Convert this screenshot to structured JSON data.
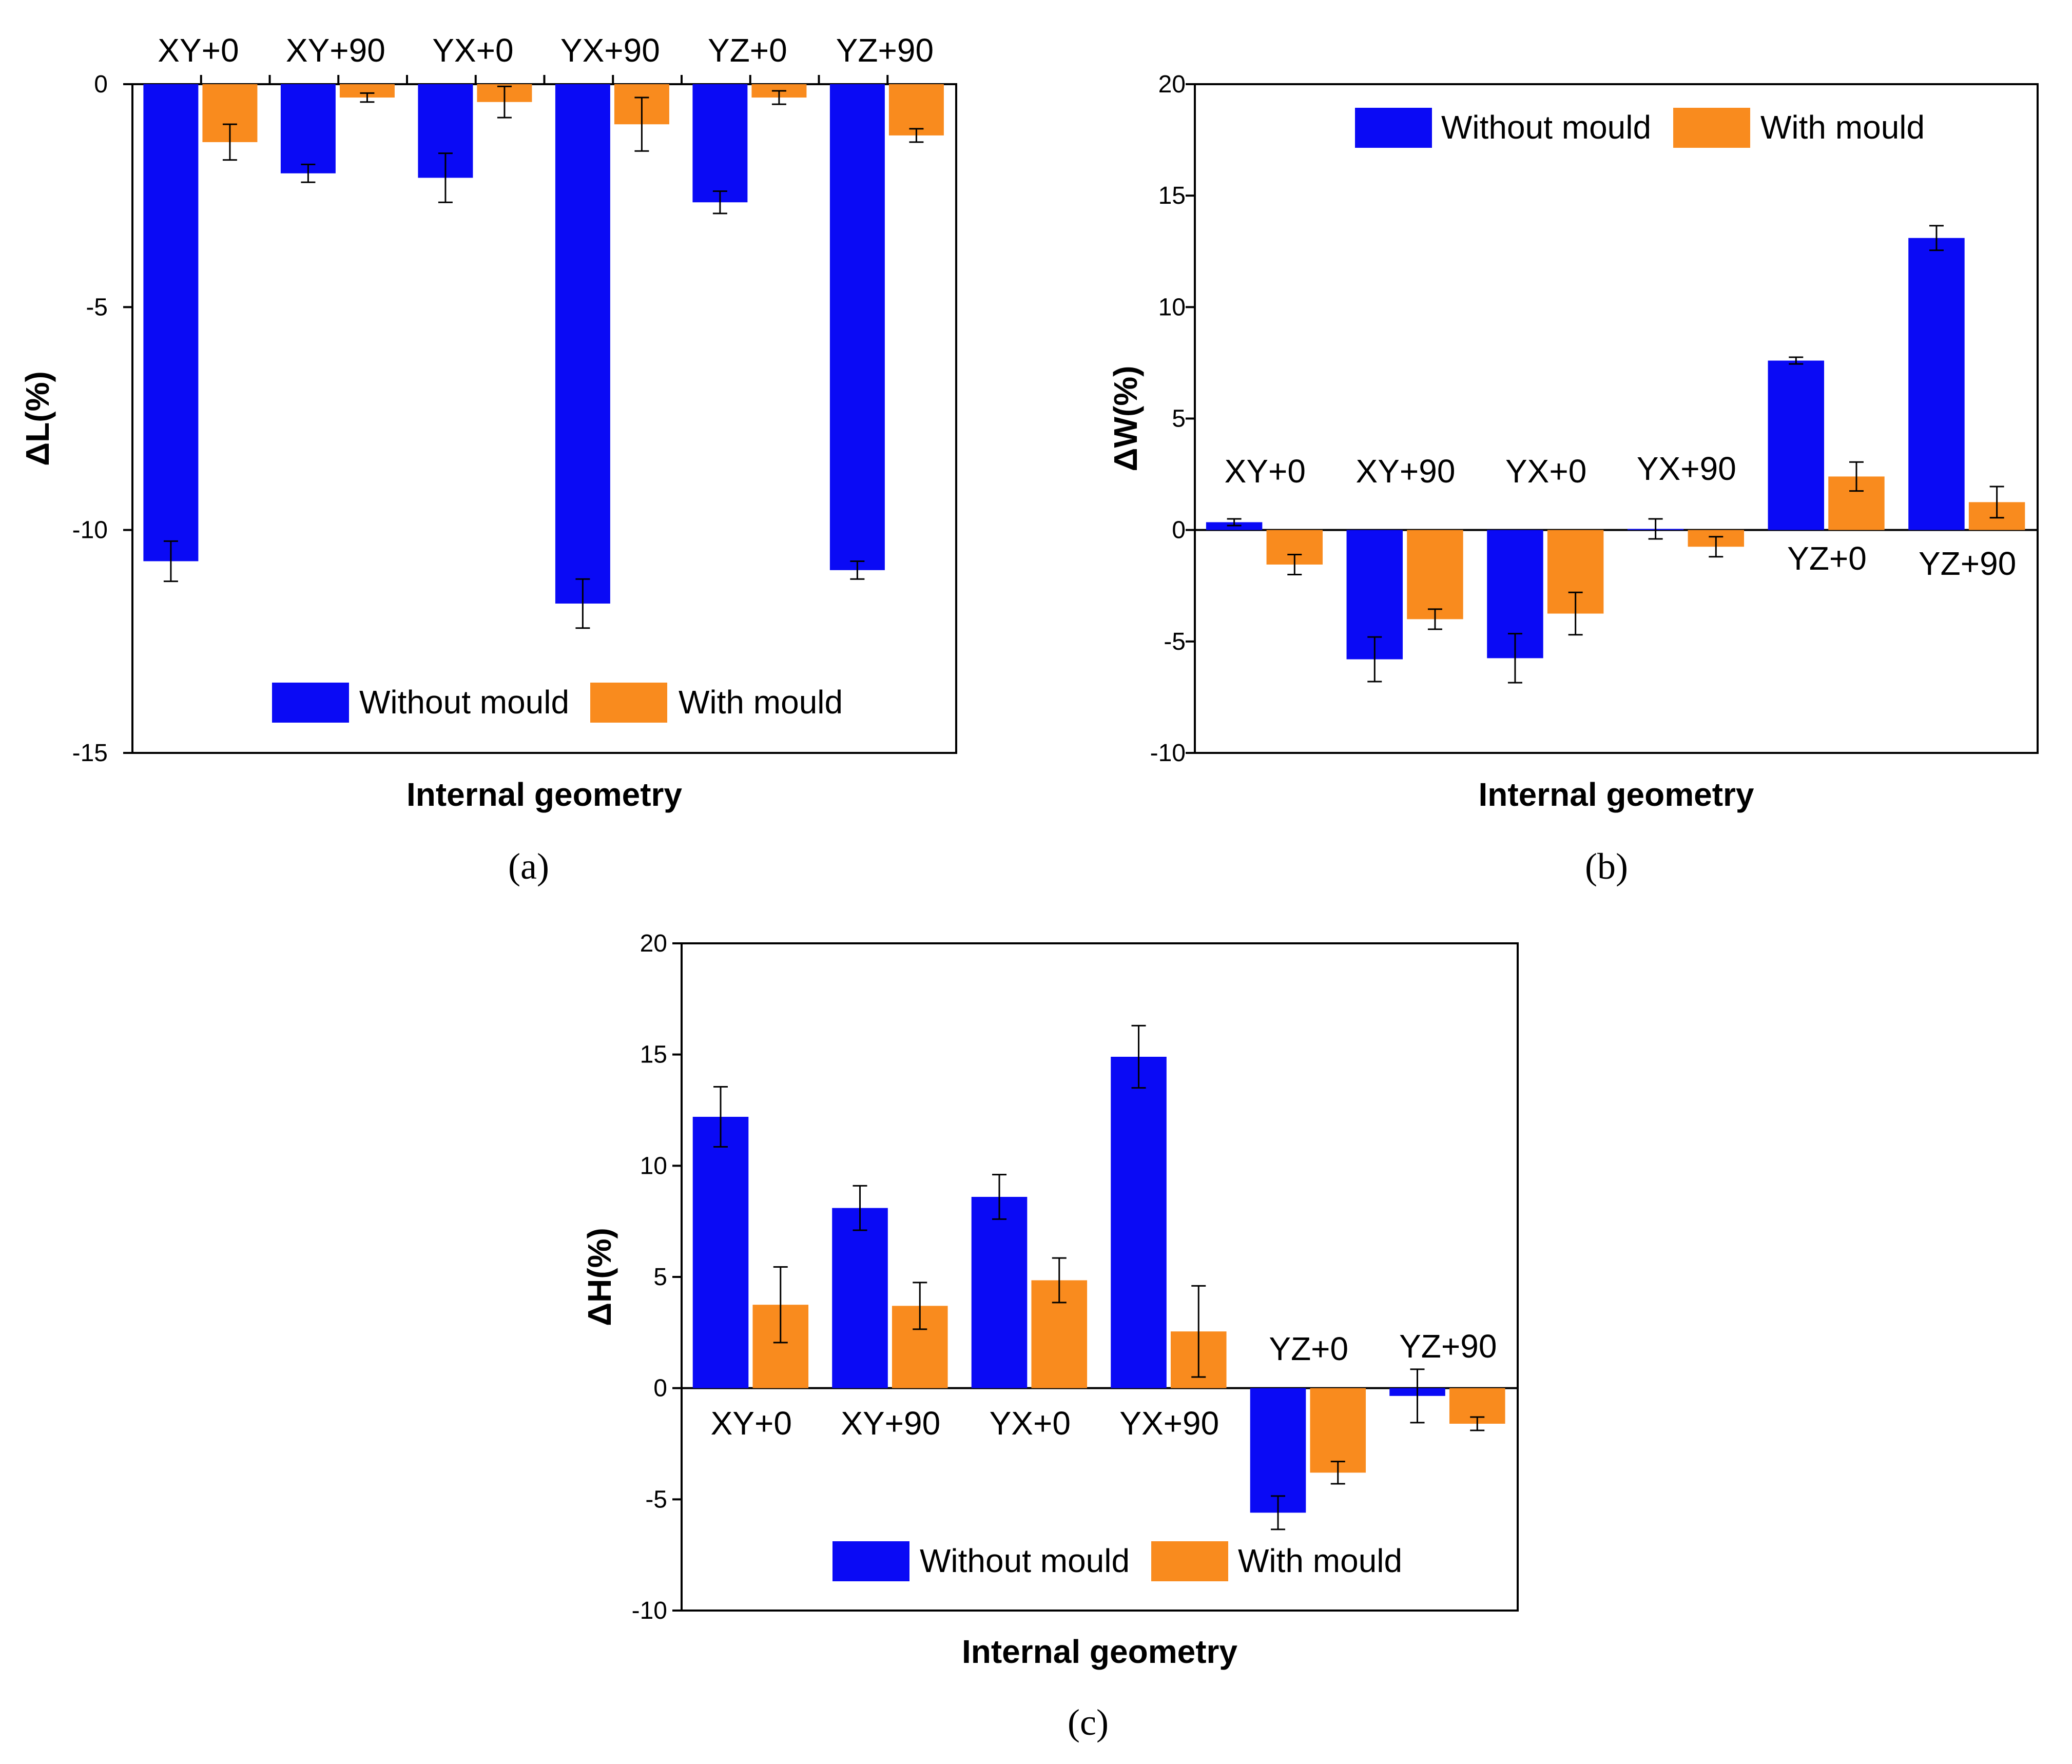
{
  "colors": {
    "without": "#0a0af5",
    "with": "#f98b1e",
    "axis": "#000000"
  },
  "chart_data": [
    {
      "type": "bar",
      "panel_label": "(a)",
      "xlabel": "Internal geometry",
      "ylabel": "ΔL(%)",
      "ylim": [
        -15,
        0
      ],
      "yticks": [
        0,
        -5,
        -10,
        -15
      ],
      "legend": {
        "position": "bottom-center",
        "labels": [
          "Without mould",
          "With mould"
        ]
      },
      "categories": [
        "XY+0",
        "XY+90",
        "YX+0",
        "YX+90",
        "YZ+0",
        "YZ+90"
      ],
      "series": [
        {
          "name": "Without mould",
          "values": [
            -10.7,
            -2.0,
            -2.1,
            -11.65,
            -2.65,
            -10.9
          ],
          "errors": [
            0.45,
            0.2,
            0.55,
            0.55,
            0.25,
            0.2
          ]
        },
        {
          "name": "With mould",
          "values": [
            -1.3,
            -0.3,
            -0.4,
            -0.9,
            -0.3,
            -1.15
          ],
          "errors": [
            0.4,
            0.1,
            0.35,
            0.6,
            0.15,
            0.15
          ]
        }
      ]
    },
    {
      "type": "bar",
      "panel_label": "(b)",
      "xlabel": "Internal geometry",
      "ylabel": "ΔW(%)",
      "ylim": [
        -10,
        20
      ],
      "yticks": [
        20,
        15,
        10,
        5,
        0,
        -5,
        -10
      ],
      "legend": {
        "position": "top",
        "labels": [
          "Without mould",
          "With mould"
        ]
      },
      "categories": [
        "XY+0",
        "XY+90",
        "YX+0",
        "YX+90",
        "YZ+0",
        "YZ+90"
      ],
      "series": [
        {
          "name": "Without mould",
          "values": [
            0.35,
            -5.8,
            -5.75,
            0.05,
            7.6,
            13.1
          ],
          "errors": [
            0.15,
            1.0,
            1.1,
            0.45,
            0.15,
            0.55
          ]
        },
        {
          "name": "With mould",
          "values": [
            -1.55,
            -4.0,
            -3.75,
            -0.75,
            2.4,
            1.25
          ],
          "errors": [
            0.45,
            0.45,
            0.95,
            0.45,
            0.65,
            0.7
          ]
        }
      ]
    },
    {
      "type": "bar",
      "panel_label": "(c)",
      "xlabel": "Internal geometry",
      "ylabel": "ΔH(%)",
      "ylim": [
        -10,
        20
      ],
      "yticks": [
        20,
        15,
        10,
        5,
        0,
        -5,
        -10
      ],
      "legend": {
        "position": "bottom-center",
        "labels": [
          "Without mould",
          "With mould"
        ]
      },
      "categories": [
        "XY+0",
        "XY+90",
        "YX+0",
        "YX+90",
        "YZ+0",
        "YZ+90"
      ],
      "series": [
        {
          "name": "Without mould",
          "values": [
            12.2,
            8.1,
            8.6,
            14.9,
            -5.6,
            -0.35
          ],
          "errors": [
            1.35,
            1.0,
            1.0,
            1.4,
            0.75,
            1.2
          ]
        },
        {
          "name": "With mould",
          "values": [
            3.75,
            3.7,
            4.85,
            2.55,
            -3.8,
            -1.6
          ],
          "errors": [
            1.7,
            1.05,
            1.0,
            2.05,
            0.5,
            0.3
          ]
        }
      ]
    }
  ]
}
